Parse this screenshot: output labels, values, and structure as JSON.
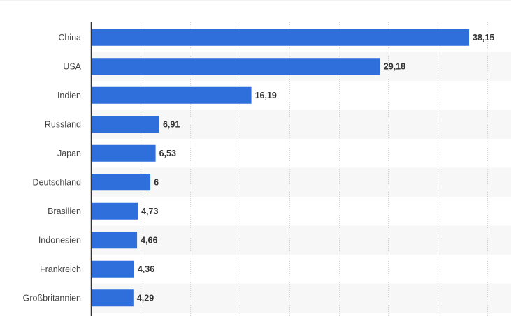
{
  "chart_data": {
    "type": "bar",
    "orientation": "horizontal",
    "categories": [
      "China",
      "USA",
      "Indien",
      "Russland",
      "Japan",
      "Deutschland",
      "Brasilien",
      "Indonesien",
      "Frankreich",
      "Großbritannien"
    ],
    "values": [
      38.15,
      29.18,
      16.19,
      6.91,
      6.53,
      6,
      4.73,
      4.66,
      4.36,
      4.29
    ],
    "value_labels": [
      "38,15",
      "29,18",
      "16,19",
      "6,91",
      "6,53",
      "6",
      "4,73",
      "4,66",
      "4,36",
      "4,29"
    ],
    "xlim": [
      0,
      42
    ],
    "grid": true,
    "grid_style": "dotted vertical",
    "title": "",
    "xlabel": "",
    "ylabel": ""
  },
  "colors": {
    "bar": "#2E6FDB",
    "band": "#F7F7F7",
    "grid": "#D3D3D3",
    "axis": "#333333",
    "top_rule": "#E6E6E6"
  }
}
